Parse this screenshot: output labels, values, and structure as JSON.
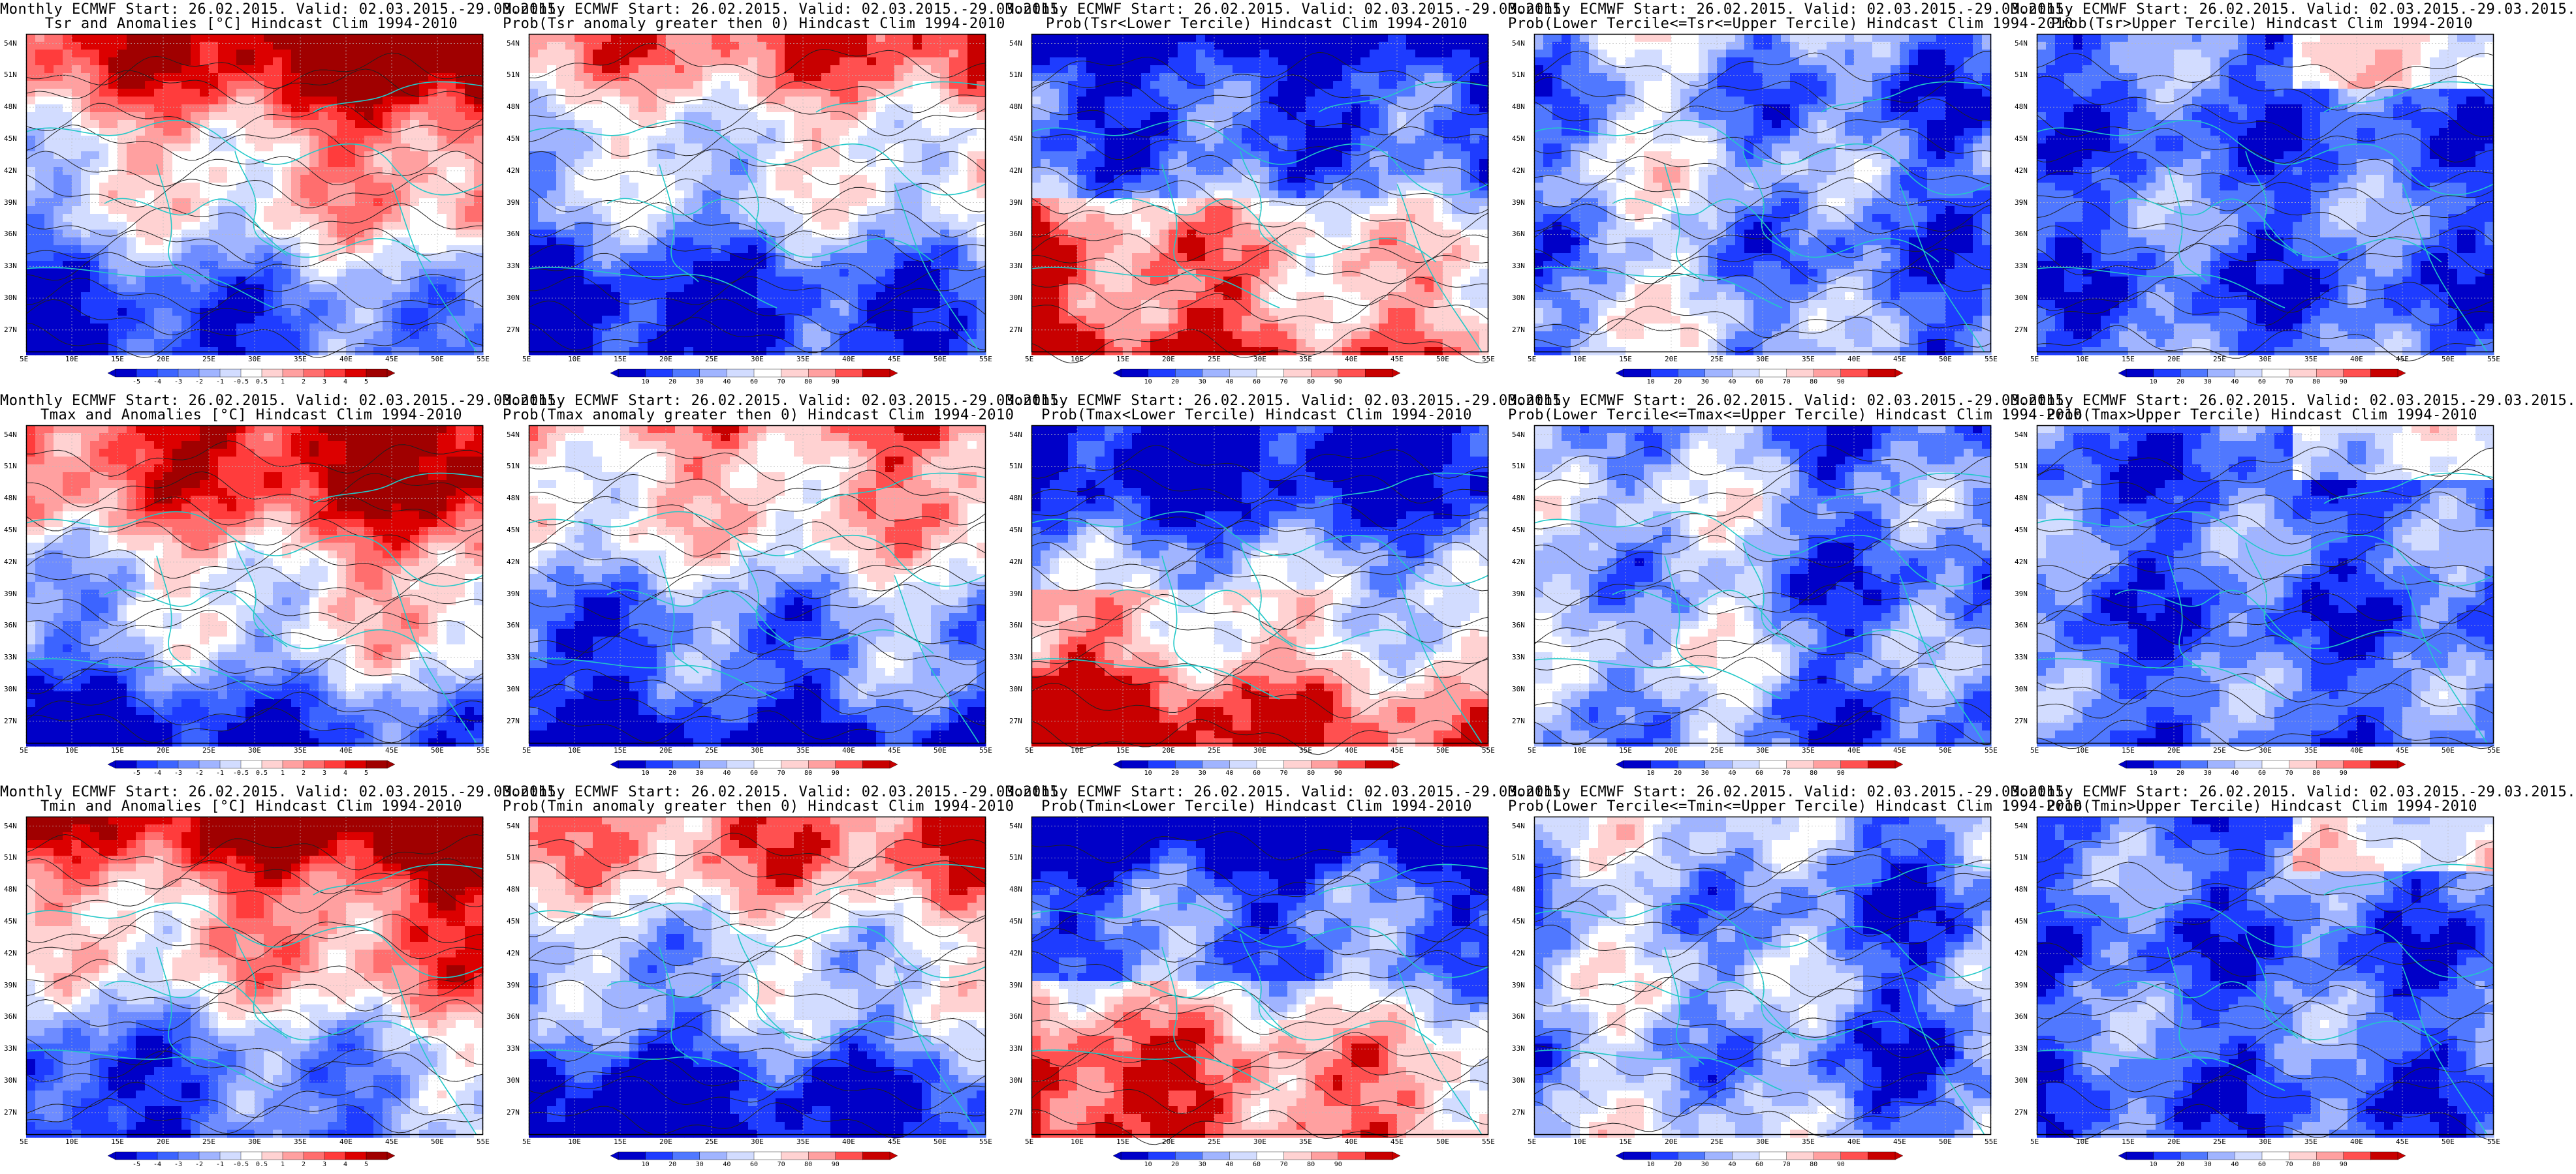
{
  "common": {
    "header": "Monthly ECMWF Start: 26.02.2015. Valid: 02.03.2015.-29.03.2015.",
    "lat_labels": [
      "54N",
      "51N",
      "48N",
      "45N",
      "42N",
      "39N",
      "36N",
      "33N",
      "30N",
      "27N"
    ],
    "lon_labels": [
      "5E",
      "10E",
      "15E",
      "20E",
      "25E",
      "30E",
      "35E",
      "40E",
      "45E",
      "50E",
      "55E"
    ]
  },
  "colorbars": {
    "anomaly": {
      "ticks": [
        "-5",
        "-4",
        "-3",
        "-2",
        "-1",
        "-0.5",
        "0.5",
        "1",
        "2",
        "3",
        "4",
        "5"
      ],
      "colors": [
        "#0000c8",
        "#1e3cff",
        "#3c64ff",
        "#6e8cff",
        "#a0b4ff",
        "#d2dcff",
        "#ffffff",
        "#ffd2d2",
        "#ffa0a0",
        "#ff6e6e",
        "#ff3c3c",
        "#dc0000",
        "#a00000"
      ]
    },
    "prob": {
      "ticks": [
        "10",
        "20",
        "30",
        "40",
        "60",
        "70",
        "80",
        "90"
      ],
      "colors": [
        "#0000c8",
        "#1e3cff",
        "#5078ff",
        "#a0b4ff",
        "#d2dcff",
        "#ffffff",
        "#ffd2d2",
        "#ffa0a0",
        "#ff5050",
        "#c80000"
      ]
    }
  },
  "panels": [
    {
      "row": 0,
      "col": 0,
      "line1": "Monthly ECMWF Start: 26.02.2015. Valid: 02.03.2015.-29.03.2015.",
      "line2": "Tsr and Anomalies [°C] Hindcast Clim 1994-2010",
      "type": "anomaly",
      "field": "anom_tsr"
    },
    {
      "row": 0,
      "col": 1,
      "line1": "Monthly ECMWF Start: 26.02.2015. Valid: 02.03.2015.-29.03.2015.",
      "line2": "Prob(Tsr anomaly greater then 0) Hindcast Clim 1994-2010",
      "type": "prob",
      "field": "prob_gt0"
    },
    {
      "row": 0,
      "col": 2,
      "line1": "Monthly ECMWF Start: 26.02.2015. Valid: 02.03.2015.-29.03.2015.",
      "line2": "Prob(Tsr<Lower Tercile) Hindcast Clim 1994-2010",
      "type": "prob",
      "field": "prob_lower"
    },
    {
      "row": 0,
      "col": 3,
      "line1": "Monthly ECMWF Start: 26.02.2015. Valid: 02.03.2015.-29.03.2015.",
      "line2": "Prob(Lower Tercile<=Tsr<=Upper Tercile) Hindcast Clim 1994-2010",
      "type": "prob",
      "field": "prob_middle"
    },
    {
      "row": 0,
      "col": 4,
      "line1": "Monthly ECMWF Start: 26.02.2015. Valid: 02.03.2015.-29.03.2015.",
      "line2": "Prob(Tsr>Upper Tercile) Hindcast Clim 1994-2010",
      "type": "prob",
      "field": "prob_upper"
    },
    {
      "row": 1,
      "col": 0,
      "line1": "Monthly ECMWF Start: 26.02.2015. Valid: 02.03.2015.-29.03.2015.",
      "line2": "Tmax and Anomalies [°C] Hindcast Clim 1994-2010",
      "type": "anomaly",
      "field": "anom_tmax"
    },
    {
      "row": 1,
      "col": 1,
      "line1": "Monthly ECMWF Start: 26.02.2015. Valid: 02.03.2015.-29.03.2015.",
      "line2": "Prob(Tmax anomaly greater then 0) Hindcast Clim 1994-2010",
      "type": "prob",
      "field": "prob_gt0"
    },
    {
      "row": 1,
      "col": 2,
      "line1": "Monthly ECMWF Start: 26.02.2015. Valid: 02.03.2015.-29.03.2015.",
      "line2": "Prob(Tmax<Lower Tercile) Hindcast Clim 1994-2010",
      "type": "prob",
      "field": "prob_lower"
    },
    {
      "row": 1,
      "col": 3,
      "line1": "Monthly ECMWF Start: 26.02.2015. Valid: 02.03.2015.-29.03.2015.",
      "line2": "Prob(Lower Tercile<=Tmax<=Upper Tercile) Hindcast Clim 1994-2010",
      "type": "prob",
      "field": "prob_middle"
    },
    {
      "row": 1,
      "col": 4,
      "line1": "Monthly ECMWF Start: 26.02.2015. Valid: 02.03.2015.-29.03.2015.",
      "line2": "Prob(Tmax>Upper Tercile) Hindcast Clim 1994-2010",
      "type": "prob",
      "field": "prob_upper"
    },
    {
      "row": 2,
      "col": 0,
      "line1": "Monthly ECMWF Start: 26.02.2015. Valid: 02.03.2015.-29.03.2015.",
      "line2": "Tmin and Anomalies [°C] Hindcast Clim 1994-2010",
      "type": "anomaly",
      "field": "anom_tmin"
    },
    {
      "row": 2,
      "col": 1,
      "line1": "Monthly ECMWF Start: 26.02.2015. Valid: 02.03.2015.-29.03.2015.",
      "line2": "Prob(Tmin anomaly greater then 0) Hindcast Clim 1994-2010",
      "type": "prob",
      "field": "prob_gt0"
    },
    {
      "row": 2,
      "col": 2,
      "line1": "Monthly ECMWF Start: 26.02.2015. Valid: 02.03.2015.-29.03.2015.",
      "line2": "Prob(Tmin<Lower Tercile) Hindcast Clim 1994-2010",
      "type": "prob",
      "field": "prob_lower"
    },
    {
      "row": 2,
      "col": 3,
      "line1": "Monthly ECMWF Start: 26.02.2015. Valid: 02.03.2015.-29.03.2015.",
      "line2": "Prob(Lower Tercile<=Tmin<=Upper Tercile) Hindcast Clim 1994-2010",
      "type": "prob",
      "field": "prob_middle"
    },
    {
      "row": 2,
      "col": 4,
      "line1": "Monthly ECMWF Start: 26.02.2015. Valid: 02.03.2015.-29.03.2015.",
      "line2": "Prob(Tmin>Upper Tercile) Hindcast Clim 1994-2010",
      "type": "prob",
      "field": "prob_upper"
    }
  ],
  "colors": {
    "coastline": "#22c8c8",
    "contour": "#202020",
    "grid": "#bbbbbb"
  }
}
